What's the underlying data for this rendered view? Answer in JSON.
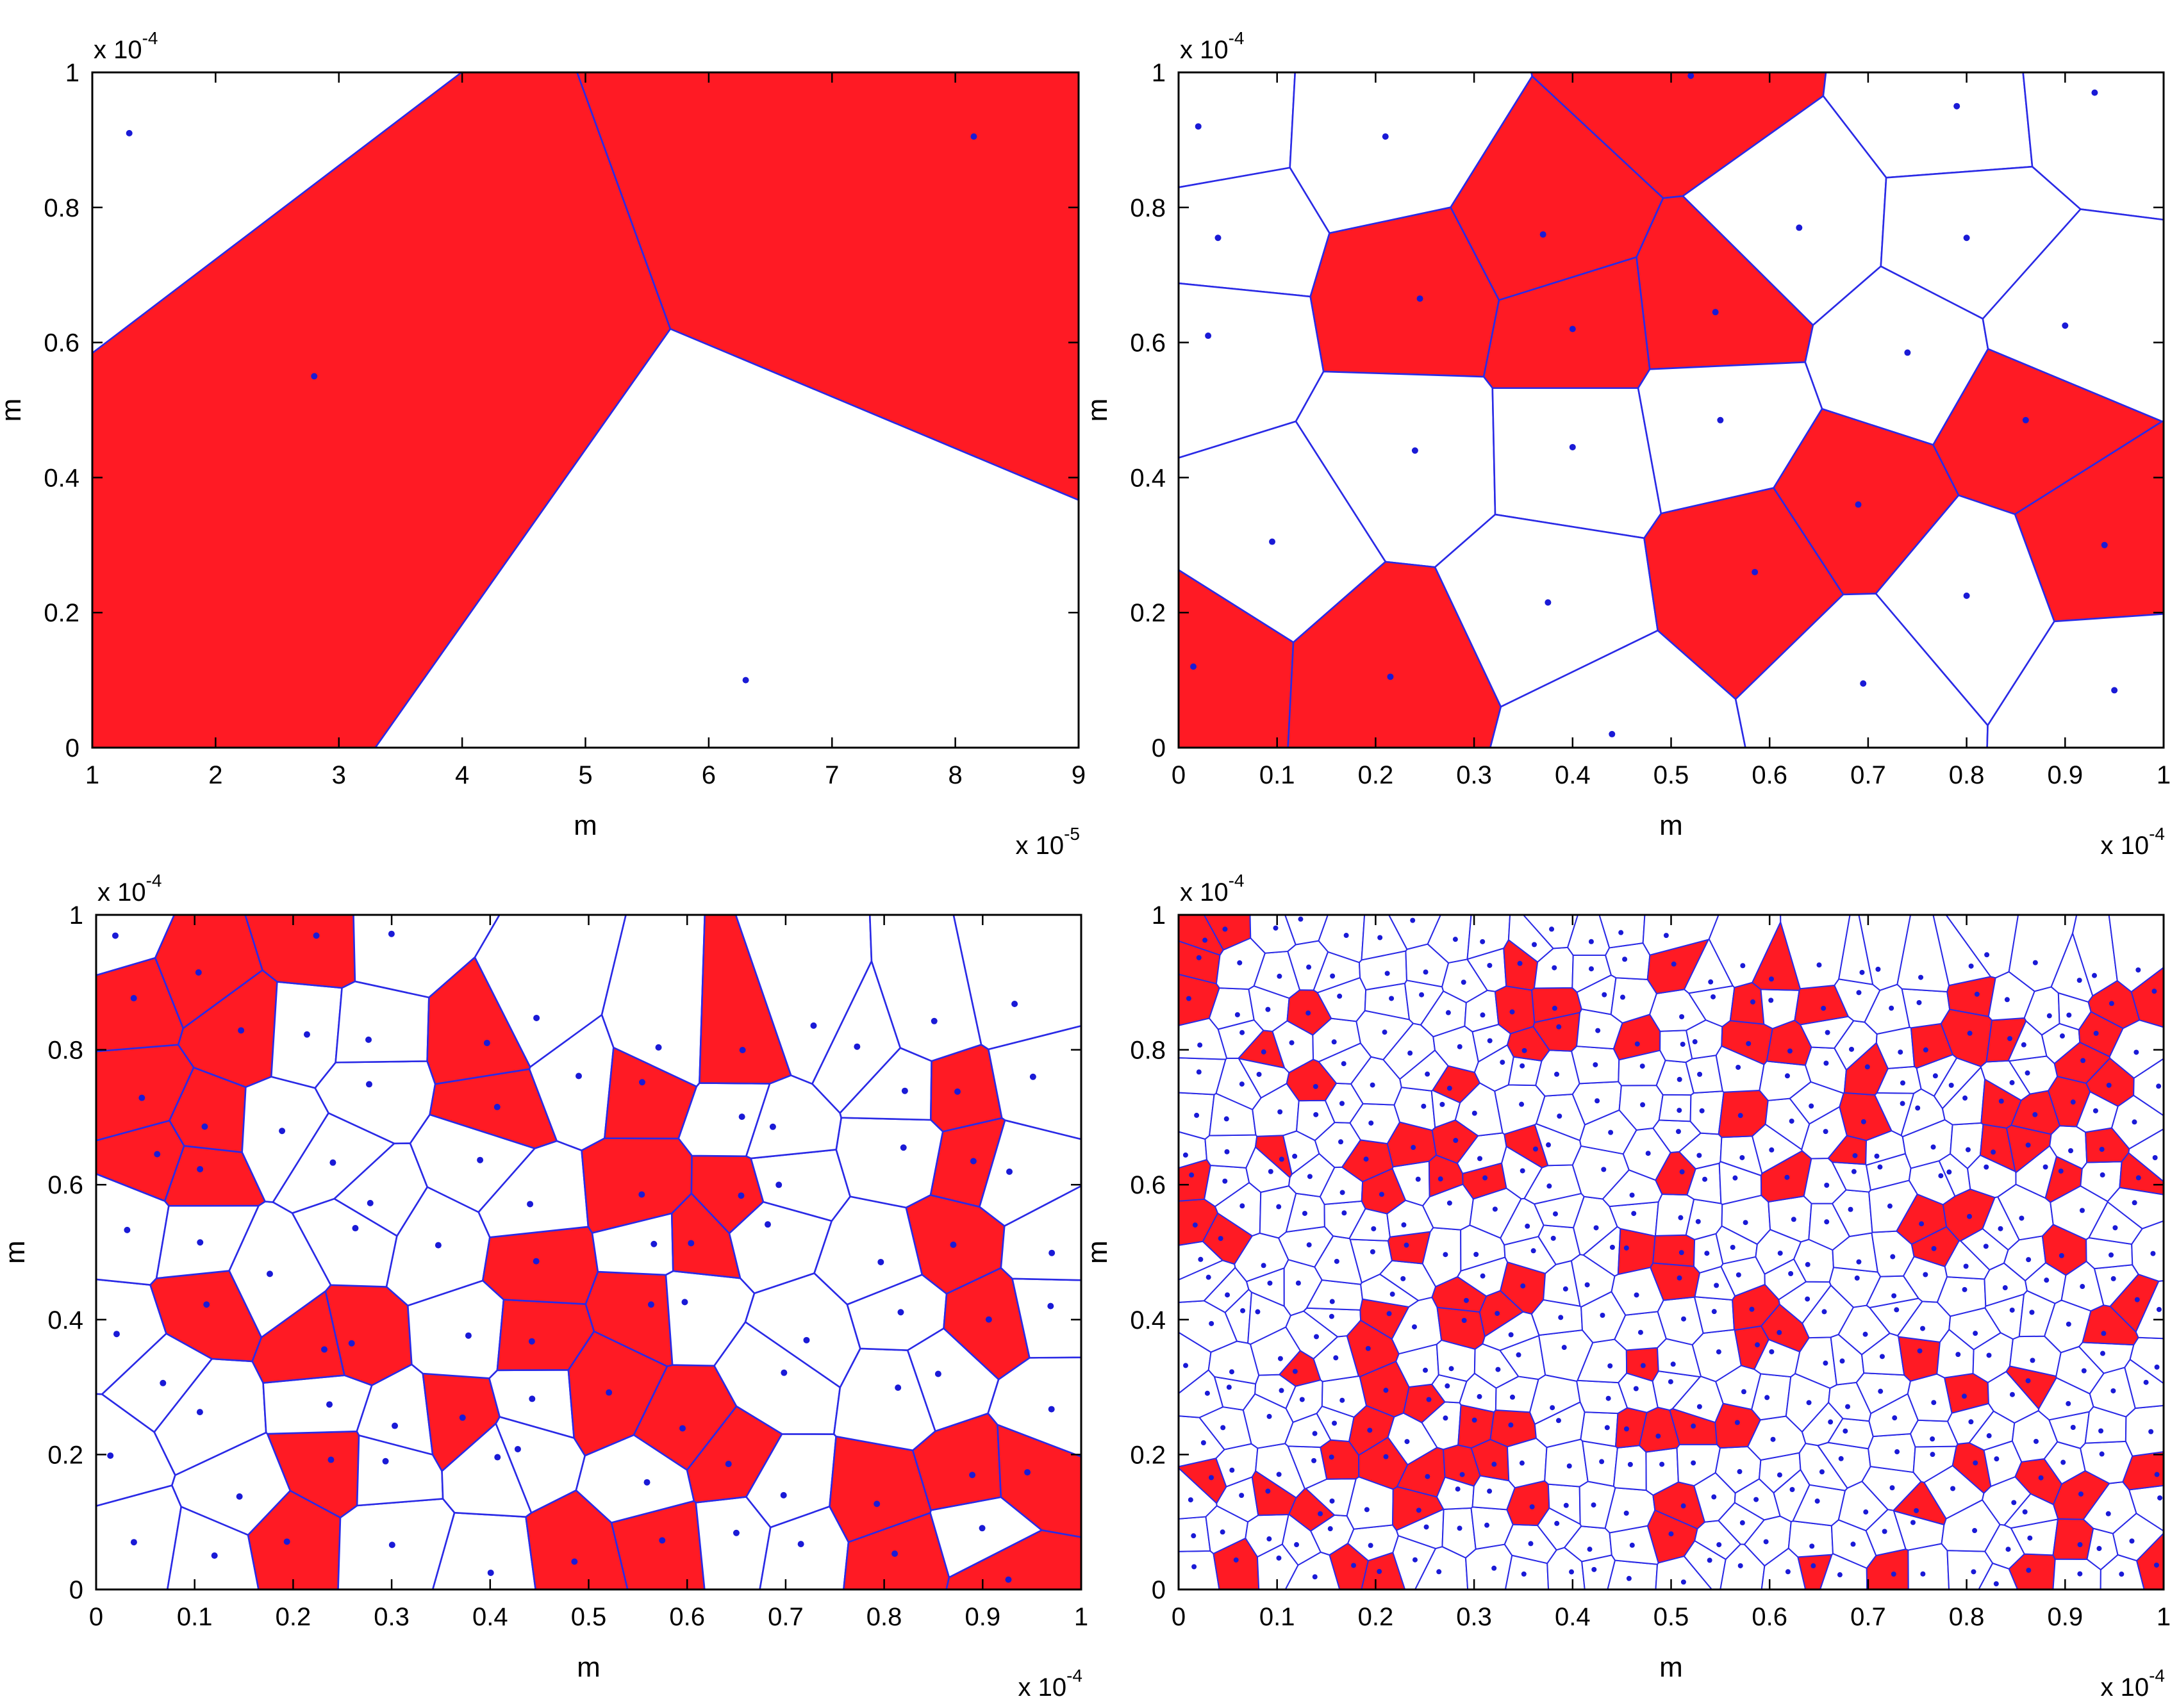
{
  "colors": {
    "filled_cell": "#ff1a24",
    "edge": "#2a2ae6",
    "seed": "#1a1ad6",
    "axes": "#000000",
    "background": "#ffffff"
  },
  "chart_data": [
    {
      "type": "voronoi",
      "panel": "top-left",
      "xlabel": "m",
      "ylabel": "m",
      "xlim": [
        1e-05,
        9e-05
      ],
      "ylim": [
        0,
        0.0001
      ],
      "x_ticks": [
        1,
        2,
        3,
        4,
        5,
        6,
        7,
        8,
        9
      ],
      "y_ticks": [
        0,
        0.2,
        0.4,
        0.6,
        0.8,
        1
      ],
      "x_multiplier": {
        "base": "x 10",
        "exponent": "-5"
      },
      "y_multiplier": {
        "base": "x 10",
        "exponent": "-4"
      },
      "seeds": [
        [
          1.3e-05,
          9.1e-05
        ],
        [
          2.8e-05,
          5.5e-05
        ],
        [
          8.15e-05,
          9.05e-05
        ],
        [
          6.3e-05,
          1e-05
        ]
      ],
      "filled": [
        1,
        2
      ],
      "seed_count": 4
    },
    {
      "type": "voronoi",
      "panel": "top-right",
      "xlabel": "m",
      "ylabel": "m",
      "xlim": [
        0,
        0.0001
      ],
      "ylim": [
        0,
        0.0001
      ],
      "x_ticks": [
        0,
        0.1,
        0.2,
        0.3,
        0.4,
        0.5,
        0.6,
        0.7,
        0.8,
        0.9,
        1
      ],
      "y_ticks": [
        0,
        0.2,
        0.4,
        0.6,
        0.8,
        1
      ],
      "x_multiplier": {
        "base": "x 10",
        "exponent": "-4"
      },
      "y_multiplier": {
        "base": "x 10",
        "exponent": "-4"
      },
      "seeds": [
        [
          2e-06,
          9.2e-05
        ],
        [
          2.1e-05,
          9.05e-05
        ],
        [
          5.2e-05,
          9.95e-05
        ],
        [
          7.9e-05,
          9.5e-05
        ],
        [
          9.3e-05,
          9.7e-05
        ],
        [
          4e-06,
          7.55e-05
        ],
        [
          3.7e-05,
          7.6e-05
        ],
        [
          6.3e-05,
          7.7e-05
        ],
        [
          8e-05,
          7.55e-05
        ],
        [
          3e-06,
          6.1e-05
        ],
        [
          2.45e-05,
          6.65e-05
        ],
        [
          4e-05,
          6.2e-05
        ],
        [
          5.45e-05,
          6.45e-05
        ],
        [
          7.4e-05,
          5.85e-05
        ],
        [
          9e-05,
          6.25e-05
        ],
        [
          2.4e-05,
          4.4e-05
        ],
        [
          4e-05,
          4.45e-05
        ],
        [
          5.5e-05,
          4.85e-05
        ],
        [
          8.6e-05,
          4.85e-05
        ],
        [
          9.5e-06,
          3.05e-05
        ],
        [
          6.9e-05,
          3.6e-05
        ],
        [
          9.4e-05,
          3e-05
        ],
        [
          1.5e-06,
          1.2e-05
        ],
        [
          2.15e-05,
          1.05e-05
        ],
        [
          3.75e-05,
          2.15e-05
        ],
        [
          5.85e-05,
          2.6e-05
        ],
        [
          8e-05,
          2.25e-05
        ],
        [
          4.4e-05,
          2e-06
        ],
        [
          6.95e-05,
          9.5e-06
        ],
        [
          9.5e-05,
          8.5e-06
        ]
      ],
      "filled": [
        2,
        6,
        10,
        11,
        12,
        18,
        20,
        21,
        22,
        23,
        25
      ],
      "seed_count": 30
    },
    {
      "type": "voronoi",
      "panel": "bottom-left",
      "xlabel": "m",
      "ylabel": "m",
      "xlim": [
        0,
        0.0001
      ],
      "ylim": [
        0,
        0.0001
      ],
      "x_ticks": [
        0,
        0.1,
        0.2,
        0.3,
        0.4,
        0.5,
        0.6,
        0.7,
        0.8,
        0.9,
        1
      ],
      "y_ticks": [
        0,
        0.2,
        0.4,
        0.6,
        0.8,
        1
      ],
      "x_multiplier": {
        "base": "x 10",
        "exponent": "-4"
      },
      "y_multiplier": {
        "base": "x 10",
        "exponent": "-4"
      },
      "seed_count": 100,
      "fill_fraction": 0.32
    },
    {
      "type": "voronoi",
      "panel": "bottom-right",
      "xlabel": "m",
      "ylabel": "m",
      "xlim": [
        0,
        0.0001
      ],
      "ylim": [
        0,
        0.0001
      ],
      "x_ticks": [
        0,
        0.1,
        0.2,
        0.3,
        0.4,
        0.5,
        0.6,
        0.7,
        0.8,
        0.9,
        1
      ],
      "y_ticks": [
        0,
        0.2,
        0.4,
        0.6,
        0.8,
        1
      ],
      "x_multiplier": {
        "base": "x 10",
        "exponent": "-4"
      },
      "y_multiplier": {
        "base": "x 10",
        "exponent": "-4"
      },
      "seed_count": 500,
      "fill_fraction": 0.2
    }
  ]
}
